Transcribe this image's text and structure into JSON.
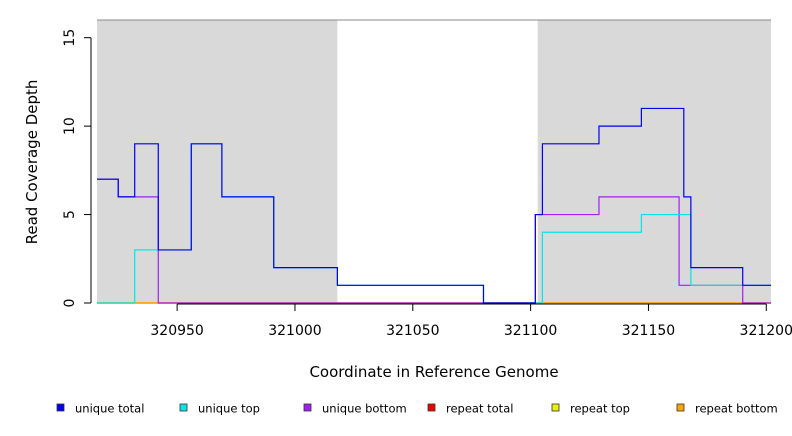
{
  "chart_data": {
    "type": "line",
    "title": "",
    "xlabel": "Coordinate in Reference Genome",
    "ylabel": "Read Coverage Depth",
    "xlim": [
      320916,
      321202
    ],
    "ylim": [
      0,
      16
    ],
    "x_ticks": [
      320950,
      321000,
      321050,
      321100,
      321150,
      321200
    ],
    "x_tick_labels": [
      "320950",
      "321000",
      "321050",
      "321100",
      "321150",
      "321200"
    ],
    "y_ticks": [
      0,
      5,
      10,
      15
    ],
    "y_tick_labels": [
      "0",
      "5",
      "10",
      "15"
    ],
    "shaded_regions": [
      {
        "x0": 320916,
        "x1": 321018,
        "color": "#d9d9d9"
      },
      {
        "x0": 321103,
        "x1": 321202,
        "color": "#d9d9d9"
      }
    ],
    "grid": false,
    "legend_position": "bottom",
    "series": [
      {
        "name": "unique total",
        "color": "#0000ee",
        "step": true,
        "points": [
          [
            320916,
            7
          ],
          [
            320925,
            7
          ],
          [
            320925,
            6
          ],
          [
            320932,
            6
          ],
          [
            320932,
            9
          ],
          [
            320942,
            9
          ],
          [
            320942,
            3
          ],
          [
            320956,
            3
          ],
          [
            320956,
            9
          ],
          [
            320969,
            9
          ],
          [
            320969,
            6
          ],
          [
            320991,
            6
          ],
          [
            320991,
            2
          ],
          [
            321018,
            2
          ],
          [
            321018,
            1
          ],
          [
            321080,
            1
          ],
          [
            321080,
            0
          ],
          [
            321102,
            0
          ],
          [
            321102,
            5
          ],
          [
            321105,
            5
          ],
          [
            321105,
            9
          ],
          [
            321129,
            9
          ],
          [
            321129,
            10
          ],
          [
            321147,
            10
          ],
          [
            321147,
            11
          ],
          [
            321165,
            11
          ],
          [
            321165,
            6
          ],
          [
            321168,
            6
          ],
          [
            321168,
            2
          ],
          [
            321190,
            2
          ],
          [
            321190,
            1
          ],
          [
            321202,
            1
          ]
        ]
      },
      {
        "name": "unique top",
        "color": "#00e5e5",
        "step": true,
        "points": [
          [
            320916,
            0
          ],
          [
            320932,
            0
          ],
          [
            320932,
            3
          ],
          [
            320942,
            3
          ],
          [
            320942,
            3
          ],
          [
            320956,
            3
          ],
          [
            320956,
            9
          ],
          [
            320969,
            9
          ],
          [
            320969,
            6
          ],
          [
            320991,
            6
          ],
          [
            320991,
            2
          ],
          [
            321018,
            2
          ],
          [
            321018,
            1
          ],
          [
            321080,
            1
          ],
          [
            321080,
            0
          ],
          [
            321105,
            0
          ],
          [
            321105,
            4
          ],
          [
            321147,
            4
          ],
          [
            321147,
            5
          ],
          [
            321168,
            5
          ],
          [
            321168,
            1
          ],
          [
            321202,
            1
          ]
        ]
      },
      {
        "name": "unique bottom",
        "color": "#a020f0",
        "step": true,
        "points": [
          [
            320916,
            7
          ],
          [
            320925,
            7
          ],
          [
            320925,
            6
          ],
          [
            320942,
            6
          ],
          [
            320942,
            0
          ],
          [
            321102,
            0
          ],
          [
            321102,
            5
          ],
          [
            321129,
            5
          ],
          [
            321129,
            6
          ],
          [
            321163,
            6
          ],
          [
            321163,
            1
          ],
          [
            321190,
            1
          ],
          [
            321190,
            0
          ],
          [
            321202,
            0
          ]
        ]
      },
      {
        "name": "repeat total",
        "color": "#ee0000",
        "step": true,
        "points": [
          [
            320916,
            0
          ],
          [
            321202,
            0
          ]
        ]
      },
      {
        "name": "repeat top",
        "color": "#eeee00",
        "step": true,
        "points": [
          [
            320916,
            0
          ],
          [
            321202,
            0
          ]
        ]
      },
      {
        "name": "repeat bottom",
        "color": "#ffa500",
        "step": true,
        "points": [
          [
            320916,
            0
          ],
          [
            321202,
            0
          ]
        ]
      }
    ]
  }
}
